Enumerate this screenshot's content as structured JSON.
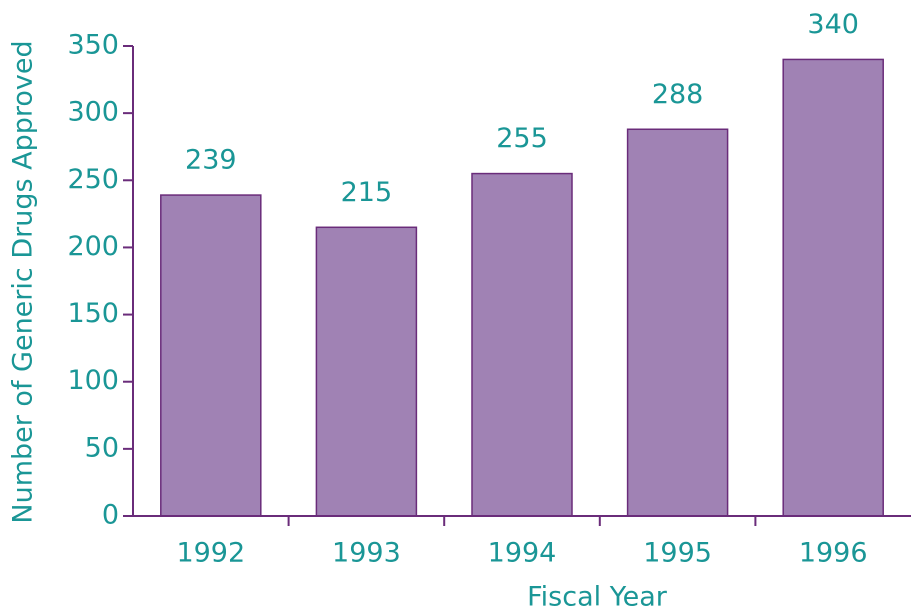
{
  "chart_data": {
    "type": "bar",
    "x_label": "Fiscal Year",
    "y_label": "Number of Generic Drugs Approved",
    "categories": [
      "1992",
      "1993",
      "1994",
      "1995",
      "1996"
    ],
    "values": [
      239,
      215,
      255,
      288,
      340
    ],
    "color": "#a082b4",
    "edge_color": "#6a2c7a",
    "ylim": [
      0,
      350
    ],
    "yticks": [
      0,
      50,
      100,
      150,
      200,
      250,
      300,
      350
    ],
    "grid": false
  }
}
